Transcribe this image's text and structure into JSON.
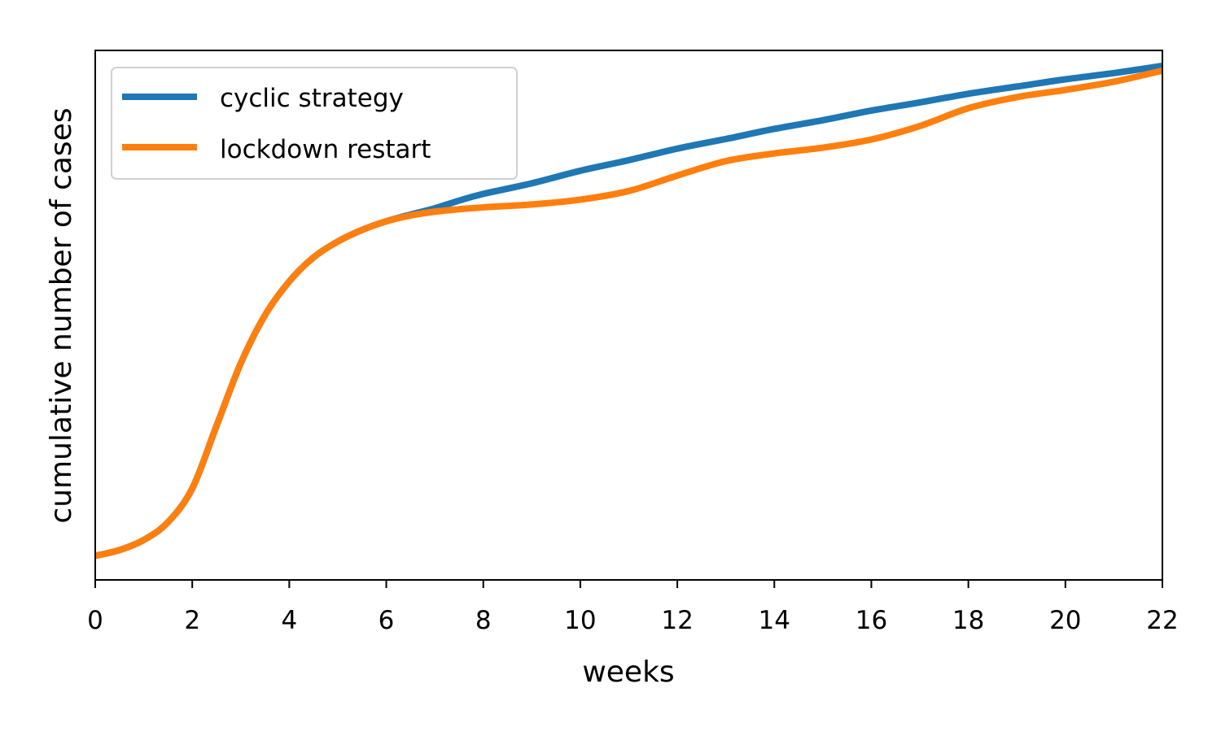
{
  "chart_data": {
    "type": "line",
    "title": "",
    "xlabel": "weeks",
    "ylabel": "cumulative number of cases",
    "xlim": [
      0,
      22
    ],
    "ylim": [
      -0.05,
      1.05
    ],
    "xticks": [
      0,
      2,
      4,
      6,
      8,
      10,
      12,
      14,
      16,
      18,
      20,
      22
    ],
    "y_tick_labels_shown": false,
    "grid": false,
    "legend_position": "top-left",
    "series": [
      {
        "name": "cyclic strategy",
        "color": "#1f77b4",
        "x": [
          0,
          0.5,
          1,
          1.5,
          2,
          2.5,
          3,
          3.5,
          4,
          4.5,
          5,
          5.5,
          6,
          6.5,
          7,
          7.5,
          8,
          9,
          10,
          11,
          12,
          13,
          14,
          15,
          16,
          17,
          18,
          19,
          20,
          21,
          22
        ],
        "y": [
          0.0,
          0.012,
          0.033,
          0.07,
          0.14,
          0.27,
          0.4,
          0.5,
          0.57,
          0.62,
          0.653,
          0.677,
          0.695,
          0.709,
          0.722,
          0.738,
          0.752,
          0.774,
          0.8,
          0.822,
          0.846,
          0.866,
          0.887,
          0.905,
          0.925,
          0.942,
          0.96,
          0.975,
          0.99,
          1.003,
          1.018
        ]
      },
      {
        "name": "lockdown restart",
        "color": "#ff7f0e",
        "x": [
          0,
          0.5,
          1,
          1.5,
          2,
          2.5,
          3,
          3.5,
          4,
          4.5,
          5,
          5.5,
          6,
          6.5,
          7,
          7.5,
          8,
          9,
          10,
          11,
          12,
          13,
          14,
          15,
          16,
          17,
          18,
          19,
          20,
          21,
          22
        ],
        "y": [
          0.0,
          0.012,
          0.033,
          0.07,
          0.14,
          0.27,
          0.4,
          0.5,
          0.57,
          0.62,
          0.653,
          0.677,
          0.695,
          0.707,
          0.715,
          0.72,
          0.724,
          0.73,
          0.74,
          0.758,
          0.79,
          0.82,
          0.836,
          0.848,
          0.865,
          0.893,
          0.93,
          0.953,
          0.968,
          0.985,
          1.008
        ]
      }
    ]
  }
}
